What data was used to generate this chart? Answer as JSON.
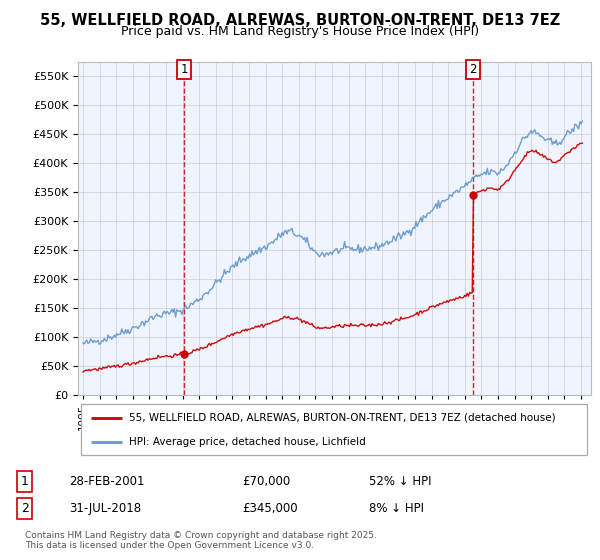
{
  "title": "55, WELLFIELD ROAD, ALREWAS, BURTON-ON-TRENT, DE13 7EZ",
  "subtitle": "Price paid vs. HM Land Registry's House Price Index (HPI)",
  "sale1_date": "28-FEB-2001",
  "sale1_price": 70000,
  "sale1_label": "1",
  "sale1_hpi_note": "52% ↓ HPI",
  "sale2_date": "31-JUL-2018",
  "sale2_price": 345000,
  "sale2_label": "2",
  "sale2_hpi_note": "8% ↓ HPI",
  "legend_property": "55, WELLFIELD ROAD, ALREWAS, BURTON-ON-TRENT, DE13 7EZ (detached house)",
  "legend_hpi": "HPI: Average price, detached house, Lichfield",
  "footer": "Contains HM Land Registry data © Crown copyright and database right 2025.\nThis data is licensed under the Open Government Licence v3.0.",
  "property_color": "#cc0000",
  "hpi_color": "#6699cc",
  "vline_color": "#cc0000",
  "ylim_max": 575000,
  "ylim_min": 0,
  "background_color": "#ffffff",
  "grid_color": "#cccccc",
  "hpi_years": [
    1995.0,
    1995.5,
    1996.0,
    1996.5,
    1997.0,
    1997.5,
    1998.0,
    1998.5,
    1999.0,
    1999.5,
    2000.0,
    2000.5,
    2001.0,
    2001.5,
    2002.0,
    2002.5,
    2003.0,
    2003.5,
    2004.0,
    2004.5,
    2005.0,
    2005.5,
    2006.0,
    2006.5,
    2007.0,
    2007.5,
    2008.0,
    2008.5,
    2009.0,
    2009.5,
    2010.0,
    2010.5,
    2011.0,
    2011.5,
    2012.0,
    2012.5,
    2013.0,
    2013.5,
    2014.0,
    2014.5,
    2015.0,
    2015.5,
    2016.0,
    2016.5,
    2017.0,
    2017.5,
    2018.0,
    2018.5,
    2019.0,
    2019.5,
    2020.0,
    2020.5,
    2021.0,
    2021.5,
    2022.0,
    2022.5,
    2023.0,
    2023.5,
    2024.0,
    2024.5,
    2025.0
  ],
  "hpi_vals": [
    88000,
    91000,
    94000,
    98000,
    104000,
    109000,
    115000,
    122000,
    130000,
    137000,
    140000,
    143000,
    146000,
    155000,
    165000,
    178000,
    192000,
    207000,
    220000,
    232000,
    240000,
    248000,
    255000,
    265000,
    278000,
    282000,
    275000,
    262000,
    245000,
    242000,
    246000,
    250000,
    252000,
    251000,
    252000,
    254000,
    258000,
    265000,
    272000,
    280000,
    292000,
    305000,
    318000,
    330000,
    340000,
    350000,
    360000,
    372000,
    380000,
    385000,
    382000,
    395000,
    418000,
    440000,
    455000,
    448000,
    438000,
    432000,
    445000,
    458000,
    468000
  ]
}
